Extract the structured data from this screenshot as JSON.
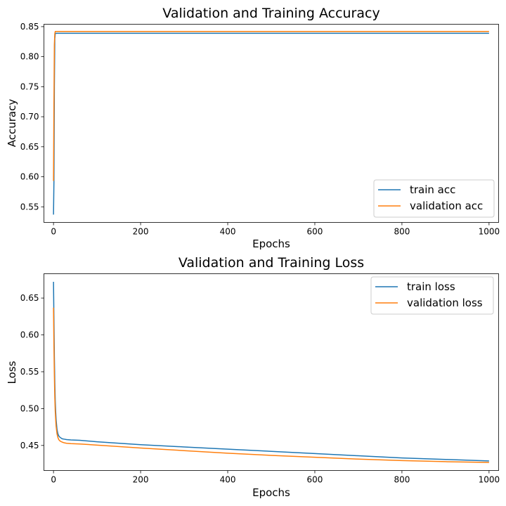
{
  "chart_data": [
    {
      "type": "line",
      "title": "Validation and Training Accuracy",
      "xlabel": "Epochs",
      "ylabel": "Accuracy",
      "xlim": [
        -22,
        1022
      ],
      "ylim": [
        0.524,
        0.854
      ],
      "xticks": [
        0,
        200,
        400,
        600,
        800,
        1000
      ],
      "yticks": [
        0.55,
        0.6,
        0.65,
        0.7,
        0.75,
        0.8,
        0.85
      ],
      "xtick_labels": [
        "0",
        "200",
        "400",
        "600",
        "800",
        "1000"
      ],
      "ytick_labels": [
        "0.55",
        "0.60",
        "0.65",
        "0.70",
        "0.75",
        "0.80",
        "0.85"
      ],
      "grid": false,
      "legend_position": "lower-right",
      "series": [
        {
          "name": "train acc",
          "color": "#1f77b4",
          "x": [
            0,
            1,
            2,
            3,
            4,
            5,
            10,
            50,
            200,
            500,
            800,
            1000
          ],
          "y": [
            0.537,
            0.592,
            0.75,
            0.83,
            0.838,
            0.839,
            0.839,
            0.839,
            0.839,
            0.839,
            0.839,
            0.839
          ]
        },
        {
          "name": "validation acc",
          "color": "#ff7f0e",
          "x": [
            0,
            1,
            2,
            3,
            4,
            5,
            10,
            50,
            200,
            500,
            800,
            1000
          ],
          "y": [
            0.593,
            0.72,
            0.82,
            0.838,
            0.842,
            0.842,
            0.842,
            0.842,
            0.842,
            0.842,
            0.842,
            0.842
          ]
        }
      ]
    },
    {
      "type": "line",
      "title": "Validation and Training Loss",
      "xlabel": "Epochs",
      "ylabel": "Loss",
      "xlim": [
        -22,
        1022
      ],
      "ylim": [
        0.416,
        0.683
      ],
      "xticks": [
        0,
        200,
        400,
        600,
        800,
        1000
      ],
      "yticks": [
        0.45,
        0.5,
        0.55,
        0.6,
        0.65
      ],
      "xtick_labels": [
        "0",
        "200",
        "400",
        "600",
        "800",
        "1000"
      ],
      "ytick_labels": [
        "0.45",
        "0.50",
        "0.55",
        "0.60",
        "0.65"
      ],
      "grid": false,
      "legend_position": "upper-right",
      "series": [
        {
          "name": "train loss",
          "color": "#1f77b4",
          "x": [
            0,
            1,
            2,
            3,
            4,
            5,
            6,
            8,
            10,
            12,
            15,
            20,
            25,
            30,
            40,
            60,
            100,
            200,
            300,
            400,
            500,
            600,
            700,
            800,
            900,
            1000
          ],
          "y": [
            0.672,
            0.62,
            0.57,
            0.535,
            0.51,
            0.496,
            0.485,
            0.472,
            0.466,
            0.463,
            0.461,
            0.459,
            0.4585,
            0.458,
            0.4575,
            0.457,
            0.455,
            0.451,
            0.448,
            0.445,
            0.442,
            0.439,
            0.436,
            0.433,
            0.431,
            0.429
          ]
        },
        {
          "name": "validation loss",
          "color": "#ff7f0e",
          "x": [
            0,
            1,
            2,
            3,
            4,
            5,
            6,
            8,
            10,
            12,
            15,
            20,
            25,
            30,
            40,
            60,
            100,
            200,
            300,
            400,
            500,
            600,
            700,
            800,
            900,
            1000
          ],
          "y": [
            0.637,
            0.585,
            0.545,
            0.515,
            0.497,
            0.485,
            0.476,
            0.466,
            0.461,
            0.458,
            0.456,
            0.4545,
            0.4535,
            0.453,
            0.4525,
            0.452,
            0.4505,
            0.4465,
            0.443,
            0.4395,
            0.4365,
            0.434,
            0.4315,
            0.4295,
            0.428,
            0.427
          ]
        }
      ]
    }
  ]
}
